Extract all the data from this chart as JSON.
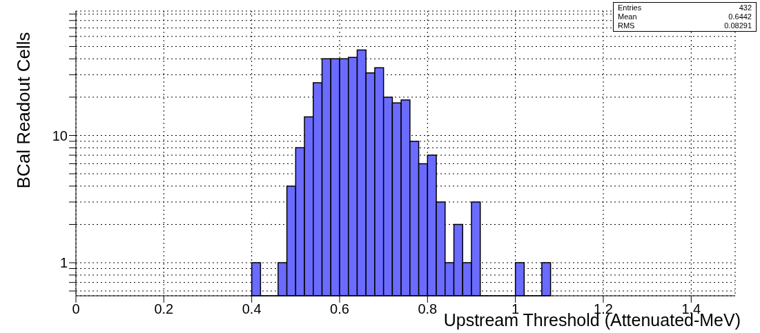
{
  "chart_data": {
    "type": "histogram",
    "xlabel": "Upstream Threshold (Attenuated-MeV)",
    "ylabel": "BCal Readout Cells",
    "bins": [
      0.4,
      0.42,
      0.44,
      0.46,
      0.48,
      0.5,
      0.52,
      0.54,
      0.56,
      0.58,
      0.6,
      0.62,
      0.64,
      0.66,
      0.68,
      0.7,
      0.72,
      0.74,
      0.76,
      0.78,
      0.8,
      0.82,
      0.84,
      0.86,
      0.88,
      0.9,
      0.92,
      0.94,
      0.96,
      0.98,
      1.0,
      1.02,
      1.04,
      1.06,
      1.08
    ],
    "values": [
      1,
      null,
      null,
      1,
      4,
      8,
      14,
      26,
      40,
      40,
      40,
      41,
      47,
      31,
      34,
      20,
      18,
      19,
      9,
      6,
      7,
      3,
      1,
      2,
      1,
      3,
      null,
      null,
      null,
      null,
      1,
      null,
      null,
      1
    ],
    "color": "#6b6bff",
    "log": "y",
    "grid": true,
    "xlim": [
      0,
      1.5
    ],
    "xticks": [
      0,
      0.2,
      0.4,
      0.6,
      0.8,
      1,
      1.2,
      1.4
    ],
    "ylim": [
      0.55,
      95
    ],
    "yticks": [
      {
        "value": 0.6,
        "label": null
      },
      {
        "value": 0.7,
        "label": null
      },
      {
        "value": 0.8,
        "label": null
      },
      {
        "value": 0.9,
        "label": null
      },
      1,
      {
        "value": 2,
        "label": null
      },
      {
        "value": 3,
        "label": null
      },
      {
        "value": 4,
        "label": null
      },
      {
        "value": 5,
        "label": null
      },
      {
        "value": 6,
        "label": null
      },
      {
        "value": 7,
        "label": null
      },
      {
        "value": 8,
        "label": null
      },
      {
        "value": 9,
        "label": null
      },
      10,
      {
        "value": 20,
        "label": null
      },
      {
        "value": 30,
        "label": null
      },
      {
        "value": 40,
        "label": null
      },
      {
        "value": 50,
        "label": null
      },
      {
        "value": 60,
        "label": null
      },
      {
        "value": 70,
        "label": null
      },
      {
        "value": 80,
        "label": null
      },
      {
        "value": 90,
        "label": null
      }
    ],
    "annotations": [
      "Entries",
      "432",
      "Mean",
      "0.6442",
      "RMS",
      "0.08291"
    ]
  }
}
